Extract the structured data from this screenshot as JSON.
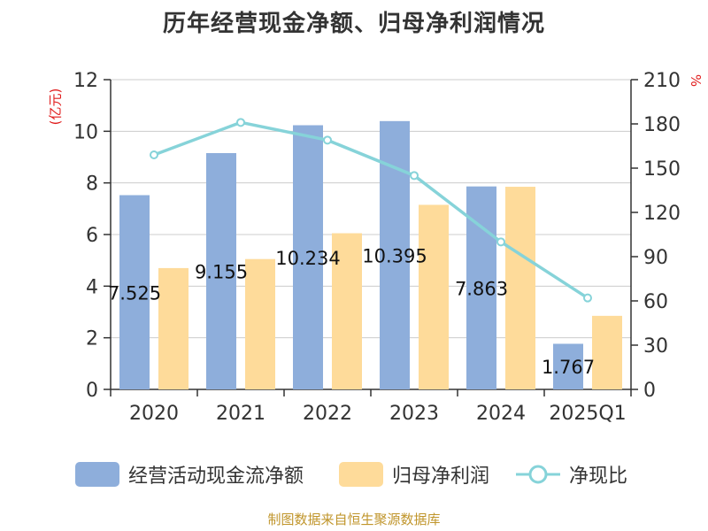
{
  "title": "历年经营现金净额、归母净利润情况",
  "left_unit": "(亿元)",
  "right_unit": "%",
  "source": "制图数据来自恒生聚源数据库",
  "colors": {
    "bar1": "#8eaedb",
    "bar2": "#fedb9a",
    "line": "#86d3d9",
    "axis": "#333333",
    "grid": "#cccccc",
    "unit": "#e01b1b",
    "source": "#c0952b"
  },
  "chart_data": {
    "type": "bar",
    "categories": [
      "2020",
      "2021",
      "2022",
      "2023",
      "2024",
      "2025Q1"
    ],
    "series": [
      {
        "name": "经营活动现金流净额",
        "type": "bar",
        "axis": "left",
        "values": [
          7.525,
          9.155,
          10.234,
          10.395,
          7.863,
          1.767
        ],
        "labels": [
          "7.525",
          "9.155",
          "10.234",
          "10.395",
          "7.863",
          "1.767"
        ]
      },
      {
        "name": "归母净利润",
        "type": "bar",
        "axis": "left",
        "values": [
          4.7,
          5.05,
          6.05,
          7.15,
          7.85,
          2.85
        ]
      },
      {
        "name": "净现比",
        "type": "line",
        "axis": "right",
        "values": [
          159,
          181,
          169,
          145,
          100,
          62
        ]
      }
    ],
    "y_left": {
      "min": 0,
      "max": 12,
      "ticks": [
        "0",
        "2",
        "4",
        "6",
        "8",
        "10",
        "12"
      ]
    },
    "y_right": {
      "min": 0,
      "max": 210,
      "ticks": [
        "0",
        "30",
        "60",
        "90",
        "120",
        "150",
        "180",
        "210"
      ]
    },
    "grid": true,
    "legend_position": "bottom"
  }
}
